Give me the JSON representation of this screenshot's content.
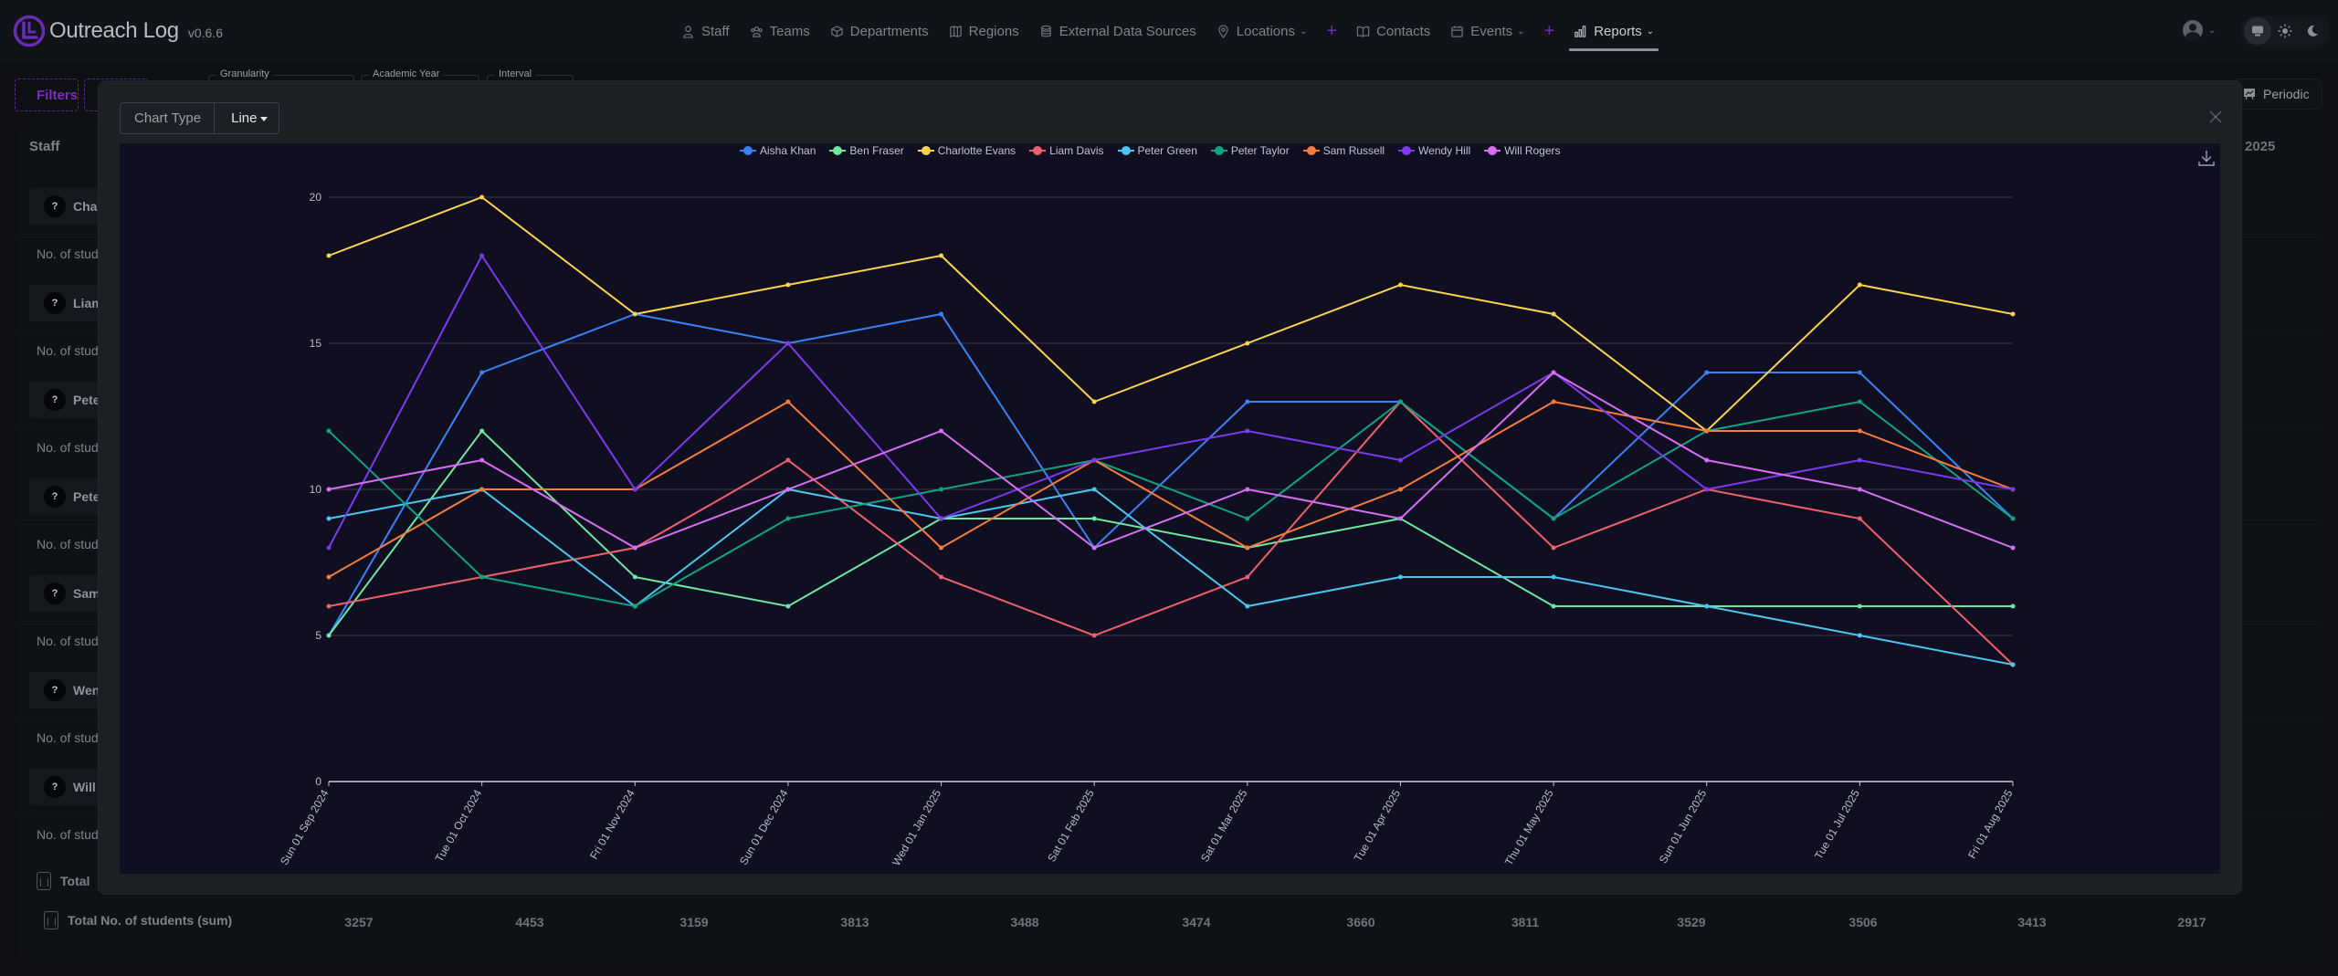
{
  "app": {
    "name": "Outreach Log",
    "version": "v0.6.6"
  },
  "nav": {
    "items": [
      {
        "label": "Staff",
        "icon": "user-icon"
      },
      {
        "label": "Teams",
        "icon": "team-icon"
      },
      {
        "label": "Departments",
        "icon": "department-icon"
      },
      {
        "label": "Regions",
        "icon": "map-icon"
      },
      {
        "label": "External Data Sources",
        "icon": "database-icon"
      },
      {
        "label": "Locations",
        "icon": "location-pin-icon",
        "dropdown": true,
        "add": true
      },
      {
        "label": "Contacts",
        "icon": "book-icon"
      },
      {
        "label": "Events",
        "icon": "calendar-icon",
        "dropdown": true,
        "add": true
      },
      {
        "label": "Reports",
        "icon": "bar-chart-icon",
        "dropdown": true,
        "active": true
      }
    ],
    "add_symbol": "+"
  },
  "toolbar": {
    "filters_label": "Filters",
    "granularity_label": "Granularity",
    "academic_year_label": "Academic Year",
    "interval_label": "Interval",
    "periodic_label": "Periodic"
  },
  "table": {
    "staff_header": "Staff",
    "last_column_header": "2025",
    "rows": [
      {
        "name_visible": "Char",
        "metric_visible": "No. of stud"
      },
      {
        "name_visible": "Liam",
        "metric_visible": "No. of stud"
      },
      {
        "name_visible": "Pete",
        "metric_visible": "No. of stud"
      },
      {
        "name_visible": "Pete",
        "metric_visible": "No. of stud"
      },
      {
        "name_visible": "Sam",
        "metric_visible": "No. of stud"
      },
      {
        "name_visible": "Wen",
        "metric_visible": "No. of stud"
      },
      {
        "name_visible": "Will",
        "metric_visible": "No. of stud"
      }
    ],
    "help_symbol": "?",
    "total_partial_label": "Total",
    "total_label": "Total No. of students (sum)",
    "totals": [
      "3257",
      "4453",
      "3159",
      "3813",
      "3488",
      "3474",
      "3660",
      "3811",
      "3529",
      "3506",
      "3413",
      "2917"
    ]
  },
  "modal": {
    "chart_type_label": "Chart Type",
    "chart_type_value": "Line"
  },
  "chart_data": {
    "type": "line",
    "title": "",
    "xlabel": "",
    "ylabel": "",
    "ylim": [
      0,
      20
    ],
    "yticks": [
      0,
      5,
      10,
      15,
      20
    ],
    "grid": true,
    "legend_position": "top-center",
    "x": [
      "Sun 01 Sep 2024",
      "Tue 01 Oct 2024",
      "Fri 01 Nov 2024",
      "Sun 01 Dec 2024",
      "Wed 01 Jan 2025",
      "Sat 01 Feb 2025",
      "Sat 01 Mar 2025",
      "Tue 01 Apr 2025",
      "Thu 01 May 2025",
      "Sun 01 Jun 2025",
      "Tue 01 Jul 2025",
      "Fri 01 Aug 2025"
    ],
    "series": [
      {
        "name": "Aisha Khan",
        "color": "#3b82f6",
        "values": [
          5,
          14,
          16,
          15,
          16,
          8,
          13,
          13,
          9,
          14,
          14,
          9
        ]
      },
      {
        "name": "Ben Fraser",
        "color": "#6ee7a0",
        "values": [
          5,
          12,
          7,
          6,
          9,
          9,
          8,
          9,
          6,
          6,
          6,
          6
        ]
      },
      {
        "name": "Charlotte Evans",
        "color": "#fcd34d",
        "values": [
          18,
          20,
          16,
          17,
          18,
          13,
          15,
          17,
          16,
          12,
          17,
          16
        ]
      },
      {
        "name": "Liam Davis",
        "color": "#f0606a",
        "values": [
          6,
          7,
          8,
          11,
          7,
          5,
          7,
          13,
          8,
          10,
          9,
          4
        ]
      },
      {
        "name": "Peter Green",
        "color": "#4cc6f0",
        "values": [
          9,
          10,
          6,
          10,
          9,
          10,
          6,
          7,
          7,
          6,
          5,
          4
        ]
      },
      {
        "name": "Peter Taylor",
        "color": "#10a37f",
        "values": [
          12,
          7,
          6,
          9,
          10,
          11,
          9,
          13,
          9,
          12,
          13,
          9
        ]
      },
      {
        "name": "Sam Russell",
        "color": "#f97c3c",
        "values": [
          7,
          10,
          10,
          13,
          8,
          11,
          8,
          10,
          13,
          12,
          12,
          10
        ]
      },
      {
        "name": "Wendy Hill",
        "color": "#7c3aed",
        "values": [
          8,
          18,
          10,
          15,
          9,
          11,
          12,
          11,
          14,
          10,
          11,
          10
        ]
      },
      {
        "name": "Will Rogers",
        "color": "#d86ef5",
        "values": [
          10,
          11,
          8,
          10,
          12,
          8,
          10,
          9,
          14,
          11,
          10,
          8
        ]
      }
    ]
  }
}
